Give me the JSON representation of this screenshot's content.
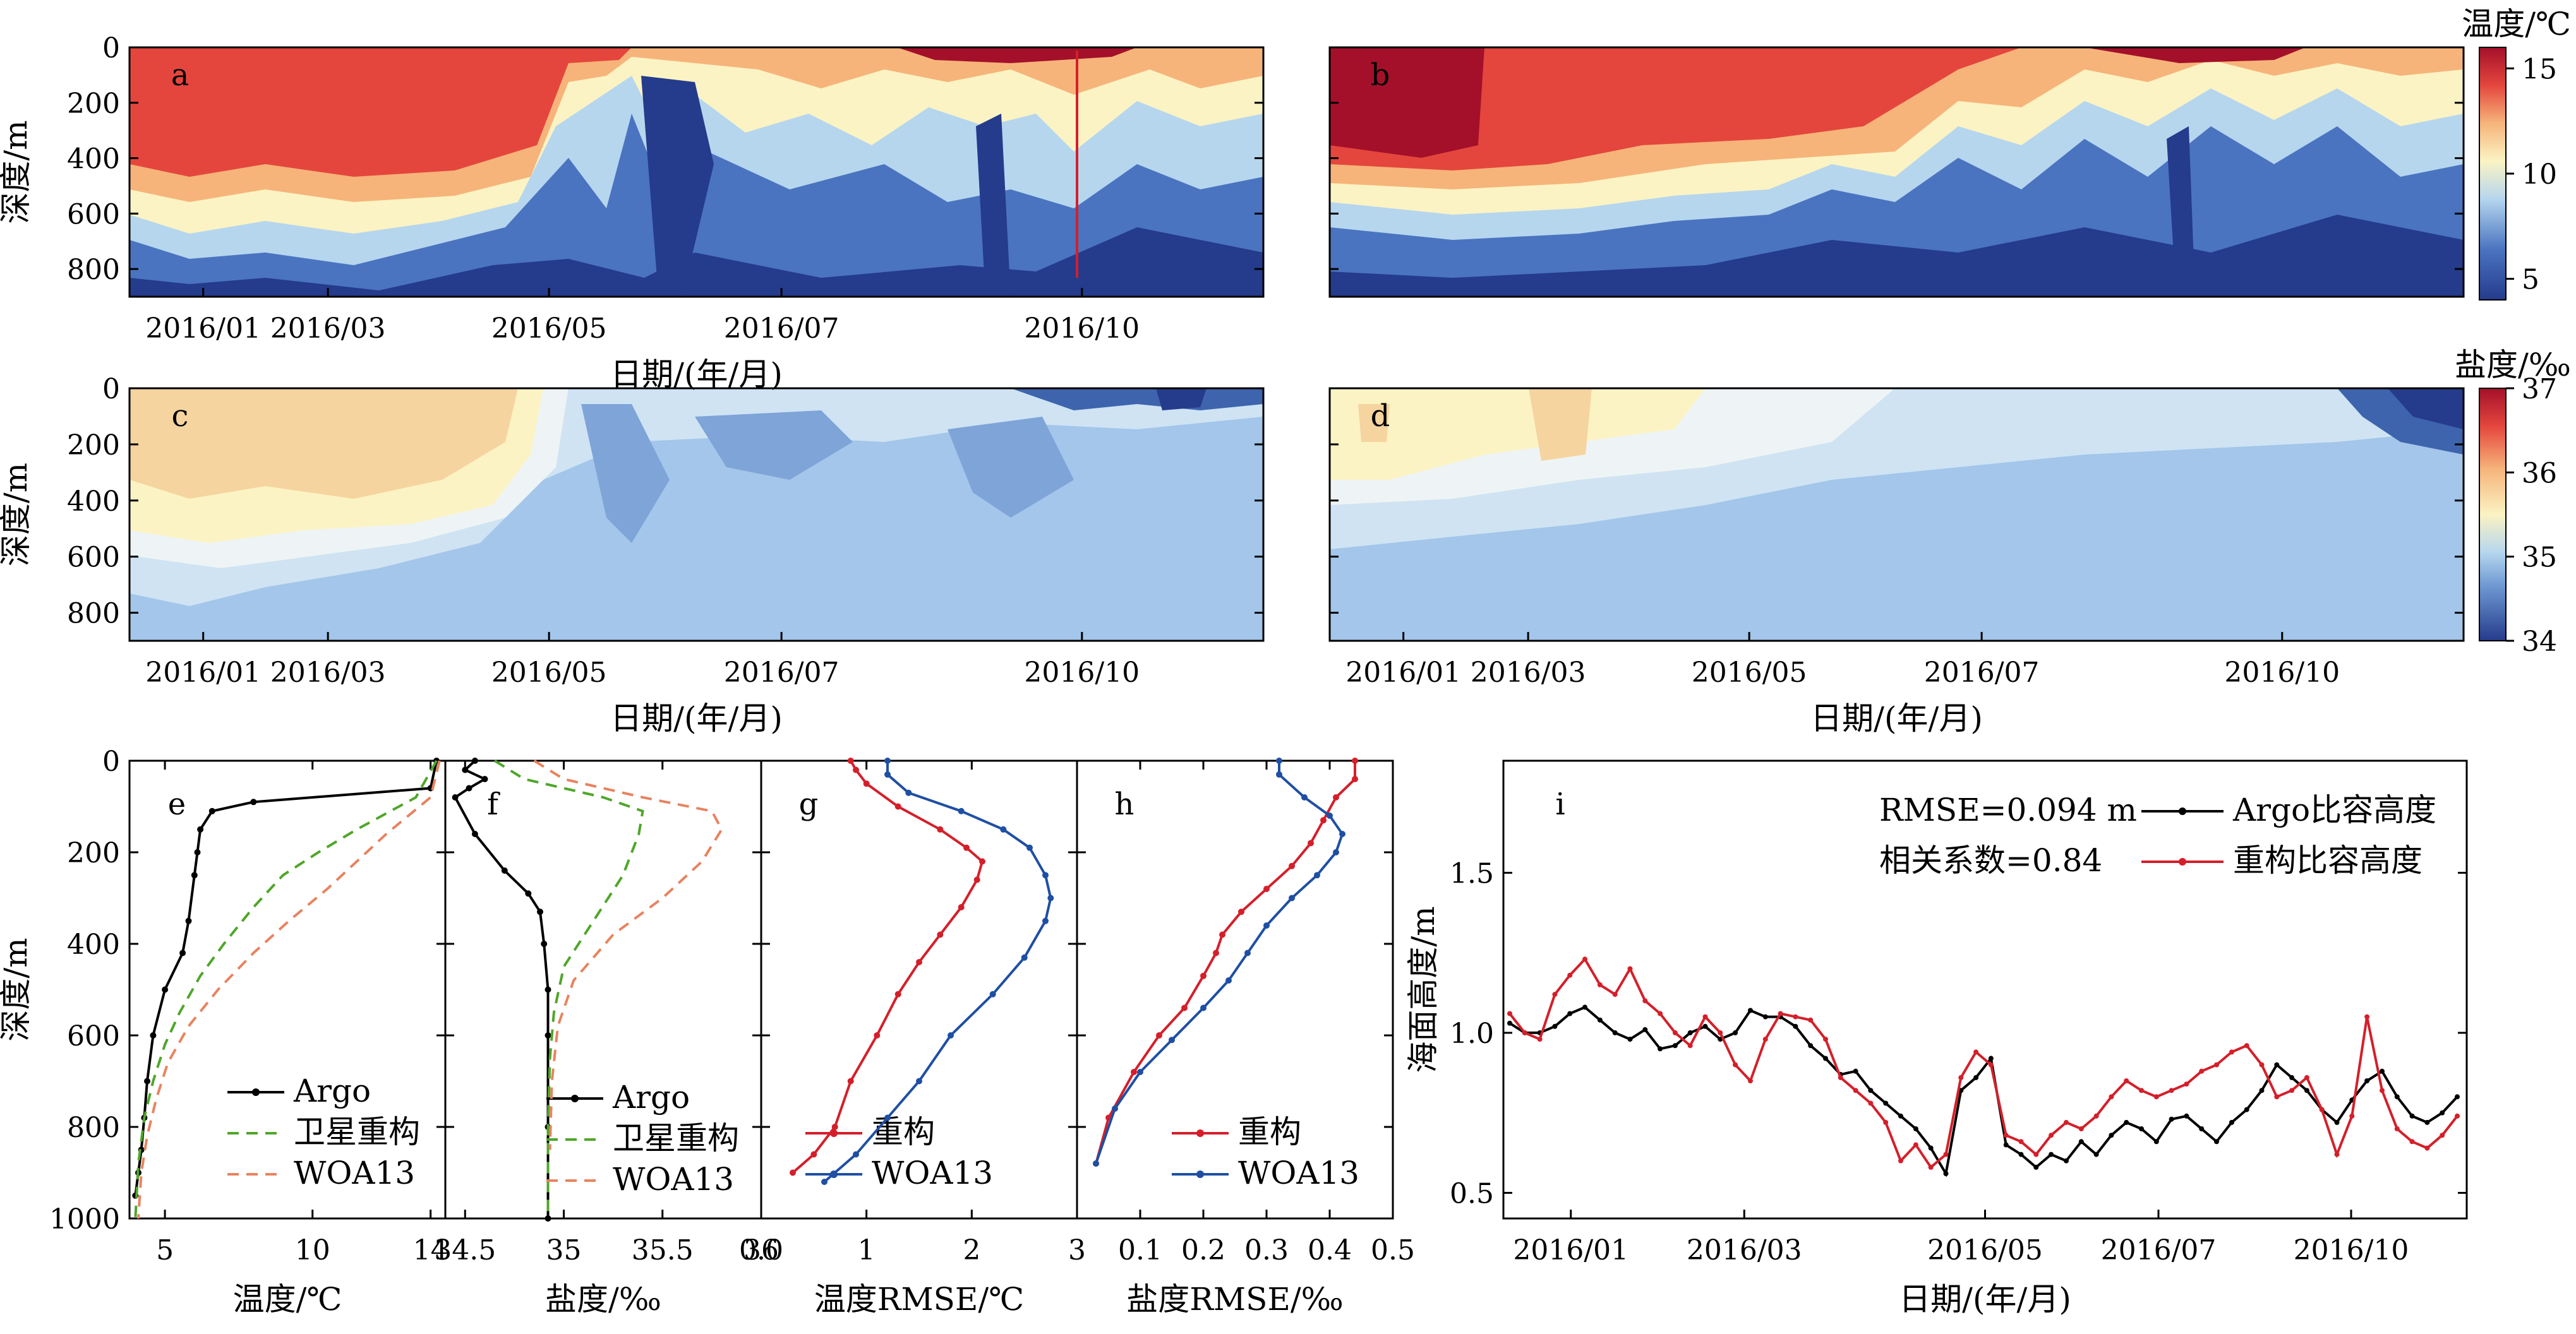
{
  "chart_data": [
    {
      "panel": "a",
      "type": "heatmap",
      "ylabel": "深度/m",
      "yticks": [
        0,
        200,
        400,
        600,
        800
      ],
      "ylim": [
        0,
        900
      ],
      "xticks": [
        "2016/01",
        "2016/03",
        "2016/05",
        "2016/07",
        "2016/10"
      ],
      "xlabel": "日期/(年/月)"
    },
    {
      "panel": "b",
      "type": "heatmap",
      "yticks": [
        0,
        200,
        400,
        600,
        800
      ],
      "ylim": [
        0,
        900
      ],
      "colorbar": {
        "title": "温度/℃",
        "ticks": [
          5,
          10,
          15
        ],
        "range": [
          4,
          16
        ]
      }
    },
    {
      "panel": "c",
      "type": "heatmap",
      "ylabel": "深度/m",
      "yticks": [
        0,
        200,
        400,
        600,
        800
      ],
      "ylim": [
        0,
        900
      ],
      "xticks": [
        "2016/01",
        "2016/03",
        "2016/05",
        "2016/07",
        "2016/10"
      ],
      "xlabel": "日期/(年/月)"
    },
    {
      "panel": "d",
      "type": "heatmap",
      "yticks": [
        0,
        200,
        400,
        600,
        800
      ],
      "ylim": [
        0,
        900
      ],
      "xticks": [
        "2016/01",
        "2016/03",
        "2016/05",
        "2016/07",
        "2016/10"
      ],
      "xlabel": "日期/(年/月)",
      "colorbar": {
        "title": "盐度/‰",
        "ticks": [
          34,
          35,
          36,
          37
        ],
        "range": [
          34,
          37
        ]
      }
    },
    {
      "panel": "e",
      "type": "line",
      "xlabel": "温度/℃",
      "ylabel": "深度/m",
      "xlim": [
        3.8,
        14.5
      ],
      "ylim": [
        0,
        1000
      ],
      "xticks": [
        5,
        10,
        14
      ],
      "yticks": [
        0,
        200,
        400,
        600,
        800,
        1000
      ],
      "series": [
        {
          "name": "Argo",
          "color": "#000000",
          "style": "solid-dot",
          "x": [
            14.2,
            14,
            8,
            6.6,
            6.2,
            6.1,
            6.0,
            5.8,
            5.6,
            5.0,
            4.6,
            4.4,
            4.3,
            4.2,
            4.1,
            4.0
          ],
          "y": [
            0,
            60,
            90,
            110,
            150,
            200,
            250,
            350,
            420,
            500,
            600,
            700,
            780,
            850,
            900,
            950
          ]
        },
        {
          "name": "卫星重构",
          "color": "#4fa629",
          "style": "dashed",
          "x": [
            14.2,
            13.5,
            11.5,
            10.2,
            9.0,
            8.0,
            7.0,
            6.2,
            5.5,
            5.0,
            4.6,
            4.3,
            4.1,
            4.0
          ],
          "y": [
            0,
            80,
            150,
            200,
            250,
            320,
            400,
            470,
            550,
            620,
            700,
            780,
            880,
            1000
          ]
        },
        {
          "name": "WOA13",
          "color": "#e8835f",
          "style": "dashed",
          "x": [
            14.3,
            14.0,
            12.5,
            11.5,
            10.5,
            9.2,
            8.0,
            6.8,
            5.8,
            5.1,
            4.7,
            4.4,
            4.2,
            4.1
          ],
          "y": [
            0,
            80,
            160,
            220,
            280,
            350,
            420,
            500,
            580,
            660,
            740,
            820,
            900,
            1000
          ]
        }
      ]
    },
    {
      "panel": "f",
      "type": "line",
      "xlabel": "盐度/‰",
      "xlim": [
        34.4,
        36.0
      ],
      "ylim": [
        0,
        1000
      ],
      "xticks": [
        34.5,
        35.0,
        35.5,
        36.0
      ],
      "series": [
        {
          "name": "Argo",
          "color": "#000000",
          "style": "solid-dot",
          "x": [
            34.55,
            34.5,
            34.6,
            34.52,
            34.45,
            34.55,
            34.7,
            34.82,
            34.88,
            34.9,
            34.92,
            34.92,
            34.92,
            34.92
          ],
          "y": [
            0,
            20,
            40,
            60,
            80,
            160,
            240,
            290,
            330,
            400,
            500,
            600,
            800,
            1000
          ]
        },
        {
          "name": "卫星重构",
          "color": "#4fa629",
          "style": "dashed",
          "x": [
            34.65,
            34.8,
            35.2,
            35.4,
            35.38,
            35.3,
            35.15,
            35.0,
            34.95,
            34.93,
            34.92,
            34.92
          ],
          "y": [
            0,
            40,
            80,
            110,
            160,
            250,
            350,
            450,
            550,
            650,
            800,
            1000
          ]
        },
        {
          "name": "WOA13",
          "color": "#e8835f",
          "style": "dashed",
          "x": [
            34.85,
            35.0,
            35.4,
            35.75,
            35.8,
            35.7,
            35.5,
            35.25,
            35.05,
            34.97,
            34.94,
            34.93
          ],
          "y": [
            0,
            40,
            80,
            110,
            150,
            220,
            300,
            380,
            480,
            580,
            700,
            850
          ]
        }
      ]
    },
    {
      "panel": "g",
      "type": "line",
      "xlabel": "温度RMSE/℃",
      "xlim": [
        0,
        3
      ],
      "ylim": [
        0,
        1000
      ],
      "xticks": [
        "0.0",
        "1",
        "2",
        "3"
      ],
      "series": [
        {
          "name": "重构",
          "color": "#d41f2a",
          "style": "solid-dot",
          "x": [
            0.85,
            0.9,
            1.0,
            1.3,
            1.7,
            1.95,
            2.1,
            2.05,
            1.9,
            1.7,
            1.5,
            1.3,
            1.1,
            0.85,
            0.7,
            0.5,
            0.3
          ],
          "y": [
            0,
            20,
            50,
            100,
            150,
            190,
            220,
            260,
            320,
            380,
            440,
            510,
            600,
            700,
            800,
            860,
            900
          ]
        },
        {
          "name": "WOA13",
          "color": "#1f4fa3",
          "style": "solid-dot",
          "x": [
            1.2,
            1.2,
            1.4,
            1.9,
            2.3,
            2.55,
            2.7,
            2.75,
            2.7,
            2.5,
            2.2,
            1.8,
            1.5,
            1.2,
            0.9,
            0.6
          ],
          "y": [
            0,
            30,
            70,
            110,
            150,
            190,
            250,
            300,
            350,
            430,
            510,
            600,
            700,
            780,
            860,
            920
          ]
        }
      ]
    },
    {
      "panel": "h",
      "type": "line",
      "xlabel": "盐度RMSE/‰",
      "xlim": [
        0,
        0.5
      ],
      "ylim": [
        0,
        1000
      ],
      "xticks": [
        "0.1",
        "0.2",
        "0.3",
        "0.4",
        "0.5"
      ],
      "series": [
        {
          "name": "重构",
          "color": "#d41f2a",
          "style": "solid-dot",
          "x": [
            0.44,
            0.44,
            0.41,
            0.39,
            0.37,
            0.34,
            0.3,
            0.26,
            0.23,
            0.22,
            0.2,
            0.17,
            0.13,
            0.09,
            0.05,
            0.03
          ],
          "y": [
            0,
            40,
            80,
            130,
            180,
            230,
            280,
            330,
            380,
            420,
            470,
            540,
            600,
            680,
            780,
            880
          ]
        },
        {
          "name": "WOA13",
          "color": "#1f4fa3",
          "style": "solid-dot",
          "x": [
            0.32,
            0.32,
            0.36,
            0.4,
            0.42,
            0.41,
            0.38,
            0.34,
            0.3,
            0.27,
            0.24,
            0.2,
            0.15,
            0.1,
            0.06,
            0.03
          ],
          "y": [
            0,
            30,
            80,
            120,
            160,
            200,
            250,
            300,
            360,
            420,
            480,
            540,
            610,
            680,
            760,
            880
          ]
        }
      ]
    },
    {
      "panel": "i",
      "type": "line",
      "xlabel": "日期/(年/月)",
      "ylabel": "海面高度/m",
      "ylim": [
        0.42,
        1.85
      ],
      "yticks": [
        0.5,
        1.0,
        1.5
      ],
      "xticks": [
        "2016/01",
        "2016/03",
        "2016/05",
        "2016/07",
        "2016/10"
      ],
      "annotations": [
        "RMSE=0.094 m",
        "相关系数=0.84"
      ],
      "series": [
        {
          "name": "Argo比容高度",
          "color": "#000000",
          "y": [
            1.03,
            1.0,
            1.0,
            1.02,
            1.06,
            1.08,
            1.04,
            1.0,
            0.98,
            1.01,
            0.95,
            0.96,
            1.0,
            1.02,
            0.98,
            1.0,
            1.07,
            1.05,
            1.05,
            1.02,
            0.96,
            0.92,
            0.87,
            0.88,
            0.82,
            0.78,
            0.74,
            0.7,
            0.64,
            0.56,
            0.82,
            0.86,
            0.92,
            0.65,
            0.62,
            0.58,
            0.62,
            0.6,
            0.66,
            0.62,
            0.68,
            0.72,
            0.7,
            0.66,
            0.73,
            0.74,
            0.7,
            0.66,
            0.72,
            0.76,
            0.82,
            0.9,
            0.86,
            0.82,
            0.76,
            0.72,
            0.79,
            0.85,
            0.88,
            0.8,
            0.74,
            0.72,
            0.75,
            0.8
          ]
        },
        {
          "name": "重构比容高度",
          "color": "#d41f2a",
          "y": [
            1.06,
            1.0,
            0.98,
            1.12,
            1.18,
            1.23,
            1.15,
            1.12,
            1.2,
            1.1,
            1.06,
            1.0,
            0.96,
            1.05,
            1.0,
            0.9,
            0.85,
            0.98,
            1.06,
            1.05,
            1.04,
            0.98,
            0.86,
            0.82,
            0.78,
            0.72,
            0.6,
            0.65,
            0.58,
            0.62,
            0.86,
            0.94,
            0.9,
            0.68,
            0.66,
            0.62,
            0.68,
            0.72,
            0.7,
            0.74,
            0.8,
            0.85,
            0.82,
            0.8,
            0.82,
            0.84,
            0.88,
            0.9,
            0.94,
            0.96,
            0.9,
            0.8,
            0.82,
            0.86,
            0.76,
            0.62,
            0.74,
            1.05,
            0.82,
            0.7,
            0.66,
            0.64,
            0.68,
            0.74
          ]
        }
      ]
    }
  ]
}
